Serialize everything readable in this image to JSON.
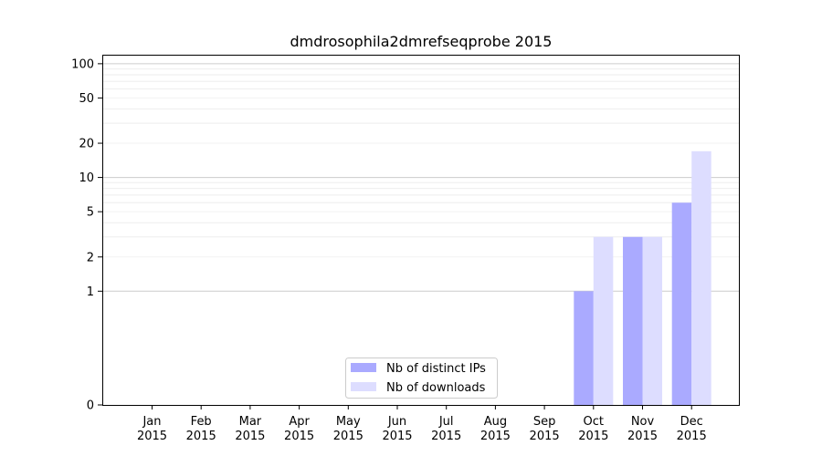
{
  "chart_data": {
    "type": "bar",
    "title": "dmdrosophila2dmrefseqprobe 2015",
    "xlabel": "",
    "ylabel": "",
    "y_scale": "symlog",
    "ylim": [
      0,
      120
    ],
    "y_ticks": [
      0,
      1,
      2,
      5,
      10,
      20,
      50,
      100
    ],
    "grid": "horizontal",
    "legend_position": "lower-center",
    "categories": [
      {
        "month": "Jan",
        "year": "2015"
      },
      {
        "month": "Feb",
        "year": "2015"
      },
      {
        "month": "Mar",
        "year": "2015"
      },
      {
        "month": "Apr",
        "year": "2015"
      },
      {
        "month": "May",
        "year": "2015"
      },
      {
        "month": "Jun",
        "year": "2015"
      },
      {
        "month": "Jul",
        "year": "2015"
      },
      {
        "month": "Aug",
        "year": "2015"
      },
      {
        "month": "Sep",
        "year": "2015"
      },
      {
        "month": "Oct",
        "year": "2015"
      },
      {
        "month": "Nov",
        "year": "2015"
      },
      {
        "month": "Dec",
        "year": "2015"
      }
    ],
    "series": [
      {
        "name": "Nb of distinct IPs",
        "color": "#aaaaff",
        "values": [
          0,
          0,
          0,
          0,
          0,
          0,
          0,
          0,
          0,
          1,
          3,
          6
        ]
      },
      {
        "name": "Nb of downloads",
        "color": "#ddddff",
        "values": [
          0,
          0,
          0,
          0,
          0,
          0,
          0,
          0,
          0,
          3,
          3,
          17
        ]
      }
    ]
  }
}
